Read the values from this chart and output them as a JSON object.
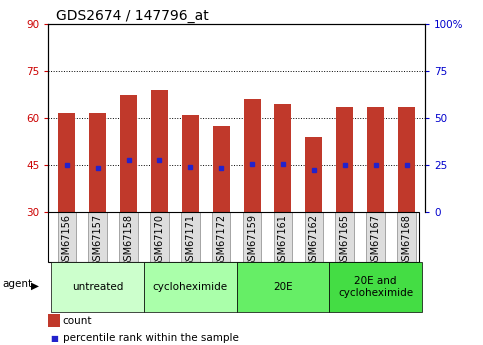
{
  "title": "GDS2674 / 147796_at",
  "samples": [
    "GSM67156",
    "GSM67157",
    "GSM67158",
    "GSM67170",
    "GSM67171",
    "GSM67172",
    "GSM67159",
    "GSM67161",
    "GSM67162",
    "GSM67165",
    "GSM67167",
    "GSM67168"
  ],
  "counts": [
    61.5,
    61.5,
    67.5,
    69.0,
    61.0,
    57.5,
    66.0,
    64.5,
    54.0,
    63.5,
    63.5,
    63.5
  ],
  "percentile_ranks": [
    45.0,
    44.0,
    46.5,
    46.5,
    44.5,
    44.0,
    45.5,
    45.5,
    43.5,
    45.0,
    45.0,
    45.0
  ],
  "bar_bottom": 30,
  "ylim_left": [
    30,
    90
  ],
  "ylim_right": [
    0,
    100
  ],
  "yticks_left": [
    30,
    45,
    60,
    75,
    90
  ],
  "yticks_right": [
    0,
    25,
    50,
    75,
    100
  ],
  "yticklabels_right": [
    "0",
    "25",
    "50",
    "75",
    "100%"
  ],
  "hlines": [
    45,
    60,
    75
  ],
  "bar_color": "#C0392B",
  "percentile_color": "#2222CC",
  "bar_width": 0.55,
  "groups": [
    {
      "label": "untreated",
      "start": 0,
      "end": 3,
      "color": "#CCFFCC"
    },
    {
      "label": "cycloheximide",
      "start": 3,
      "end": 6,
      "color": "#AAFFAA"
    },
    {
      "label": "20E",
      "start": 6,
      "end": 9,
      "color": "#66EE66"
    },
    {
      "label": "20E and\ncycloheximide",
      "start": 9,
      "end": 12,
      "color": "#44DD44"
    }
  ],
  "xlabel_bottom": "agent",
  "legend_count_label": "count",
  "legend_pct_label": "percentile rank within the sample",
  "tick_color_left": "#CC0000",
  "tick_color_right": "#0000CC",
  "title_fontsize": 10,
  "label_fontsize": 7,
  "tick_fontsize": 7.5,
  "group_fontsize": 7.5,
  "legend_fontsize": 7.5
}
